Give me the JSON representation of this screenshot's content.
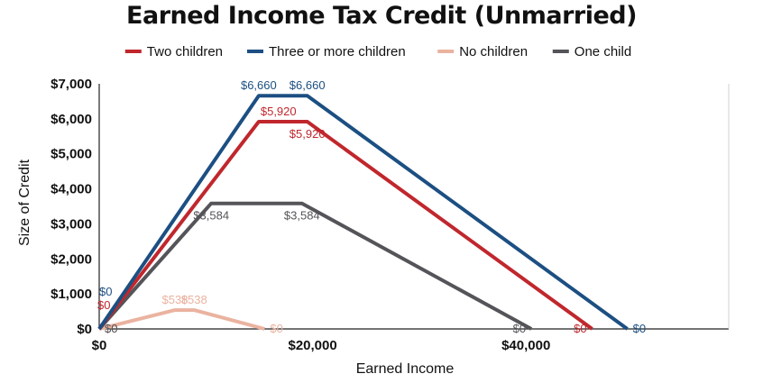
{
  "chart_data": {
    "type": "line",
    "title": "Earned Income Tax Credit (Unmarried)",
    "xlabel": "Earned Income",
    "ylabel": "Size of Credit",
    "xlim": [
      0,
      59000
    ],
    "ylim": [
      0,
      7000
    ],
    "x_ticks": [
      {
        "value": 0,
        "label": "$0"
      },
      {
        "value": 20000,
        "label": "$20,000"
      },
      {
        "value": 40000,
        "label": "$40,000"
      }
    ],
    "y_ticks": [
      {
        "value": 0,
        "label": "$0"
      },
      {
        "value": 1000,
        "label": "$1,000"
      },
      {
        "value": 2000,
        "label": "$2,000"
      },
      {
        "value": 3000,
        "label": "$3,000"
      },
      {
        "value": 4000,
        "label": "$4,000"
      },
      {
        "value": 5000,
        "label": "$5,000"
      },
      {
        "value": 6000,
        "label": "$6,000"
      },
      {
        "value": 7000,
        "label": "$7,000"
      }
    ],
    "grid": false,
    "legend_position": "top",
    "series": [
      {
        "name": "Two children",
        "color": "#c0272d",
        "points": [
          [
            0,
            0
          ],
          [
            14950,
            5920
          ],
          [
            19500,
            5920
          ],
          [
            46200,
            0
          ]
        ],
        "labels": [
          {
            "point": 0,
            "text": "$0",
            "place": "above-left"
          },
          {
            "point": 1,
            "text": "$5,920",
            "place": "below-right"
          },
          {
            "point": 2,
            "text": "$5,920",
            "place": "below"
          },
          {
            "point": 3,
            "text": "$0",
            "place": "left"
          }
        ]
      },
      {
        "name": "Three or more children",
        "color": "#1c4f82",
        "points": [
          [
            0,
            0
          ],
          [
            14950,
            6660
          ],
          [
            19500,
            6660
          ],
          [
            49500,
            0
          ]
        ],
        "labels": [
          {
            "point": 0,
            "text": "$0",
            "place": "above-right"
          },
          {
            "point": 1,
            "text": "$6,660",
            "place": "above"
          },
          {
            "point": 2,
            "text": "$6,660",
            "place": "above"
          },
          {
            "point": 3,
            "text": "$0",
            "place": "right"
          }
        ]
      },
      {
        "name": "No children",
        "color": "#eab3a0",
        "points": [
          [
            0,
            0
          ],
          [
            7100,
            538
          ],
          [
            8900,
            538
          ],
          [
            15500,
            0
          ]
        ],
        "labels": [
          {
            "point": 0,
            "text": "$0",
            "place": "right"
          },
          {
            "point": 1,
            "text": "$538",
            "place": "above"
          },
          {
            "point": 2,
            "text": "$538",
            "place": "above"
          },
          {
            "point": 3,
            "text": "$0",
            "place": "right"
          }
        ]
      },
      {
        "name": "One child",
        "color": "#545459",
        "points": [
          [
            0,
            0
          ],
          [
            10500,
            3584
          ],
          [
            19000,
            3584
          ],
          [
            40500,
            0
          ]
        ],
        "labels": [
          {
            "point": 0,
            "text": "$0",
            "place": "right"
          },
          {
            "point": 1,
            "text": "$3,584",
            "place": "below"
          },
          {
            "point": 2,
            "text": "$3,584",
            "place": "below"
          },
          {
            "point": 3,
            "text": "$0",
            "place": "left"
          }
        ]
      }
    ]
  }
}
